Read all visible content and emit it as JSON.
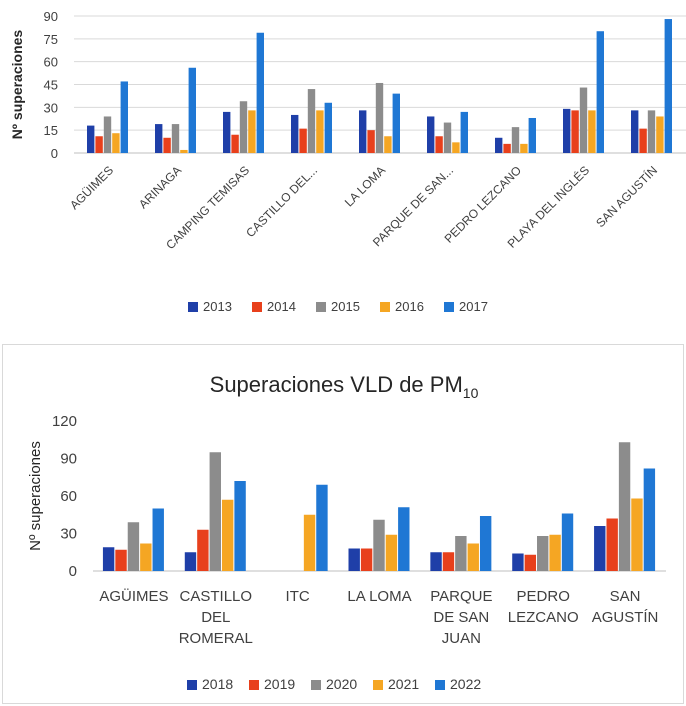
{
  "chart_data": [
    {
      "type": "bar",
      "title": "",
      "ylabel": "Nº superaciones",
      "xlabel": "",
      "ylim": [
        0,
        90
      ],
      "yticks": [
        0,
        15,
        30,
        45,
        60,
        75,
        90
      ],
      "grid": true,
      "legend": "bottom",
      "categories": [
        "AGÜIMES",
        "ARINAGA",
        "CAMPING TEMISAS",
        "CASTILLO DEL...",
        "LA LOMA",
        "PARQUE DE SAN...",
        "PEDRO LEZCANO",
        "PLAYA DEL INGLÉS",
        "SAN AGUSTÍN"
      ],
      "series": [
        {
          "name": "2013",
          "color": "#1f3fa8",
          "values": [
            18,
            19,
            27,
            25,
            28,
            24,
            10,
            29,
            28
          ]
        },
        {
          "name": "2014",
          "color": "#e8401c",
          "values": [
            11,
            10,
            12,
            16,
            15,
            11,
            6,
            28,
            16
          ]
        },
        {
          "name": "2015",
          "color": "#8c8c8c",
          "values": [
            24,
            19,
            34,
            42,
            46,
            20,
            17,
            43,
            28
          ]
        },
        {
          "name": "2016",
          "color": "#f5a623",
          "values": [
            13,
            2,
            28,
            28,
            11,
            7,
            6,
            28,
            24
          ]
        },
        {
          "name": "2017",
          "color": "#1f77d4",
          "values": [
            47,
            56,
            79,
            33,
            39,
            27,
            23,
            80,
            88
          ]
        }
      ]
    },
    {
      "type": "bar",
      "title": "Superaciones VLD de PM",
      "title_subscript": "10",
      "ylabel": "Nº superaciones",
      "xlabel": "",
      "ylim": [
        0,
        120
      ],
      "yticks": [
        0,
        30,
        60,
        90,
        120
      ],
      "grid": false,
      "legend": "bottom",
      "categories": [
        [
          "AGÜIMES"
        ],
        [
          "CASTILLO",
          "DEL",
          "ROMERAL"
        ],
        [
          "ITC"
        ],
        [
          "LA LOMA"
        ],
        [
          "PARQUE",
          "DE SAN",
          "JUAN"
        ],
        [
          "PEDRO",
          "LEZCANO"
        ],
        [
          "SAN",
          "AGUSTÍN"
        ]
      ],
      "series": [
        {
          "name": "2018",
          "color": "#1f3fa8",
          "values": [
            19,
            15,
            null,
            18,
            15,
            14,
            36
          ]
        },
        {
          "name": "2019",
          "color": "#e8401c",
          "values": [
            17,
            33,
            null,
            18,
            15,
            13,
            42
          ]
        },
        {
          "name": "2020",
          "color": "#8c8c8c",
          "values": [
            39,
            95,
            null,
            41,
            28,
            28,
            103
          ]
        },
        {
          "name": "2021",
          "color": "#f5a623",
          "values": [
            22,
            57,
            45,
            29,
            22,
            29,
            58
          ]
        },
        {
          "name": "2022",
          "color": "#1f77d4",
          "values": [
            50,
            72,
            69,
            51,
            44,
            46,
            82
          ]
        }
      ]
    }
  ]
}
